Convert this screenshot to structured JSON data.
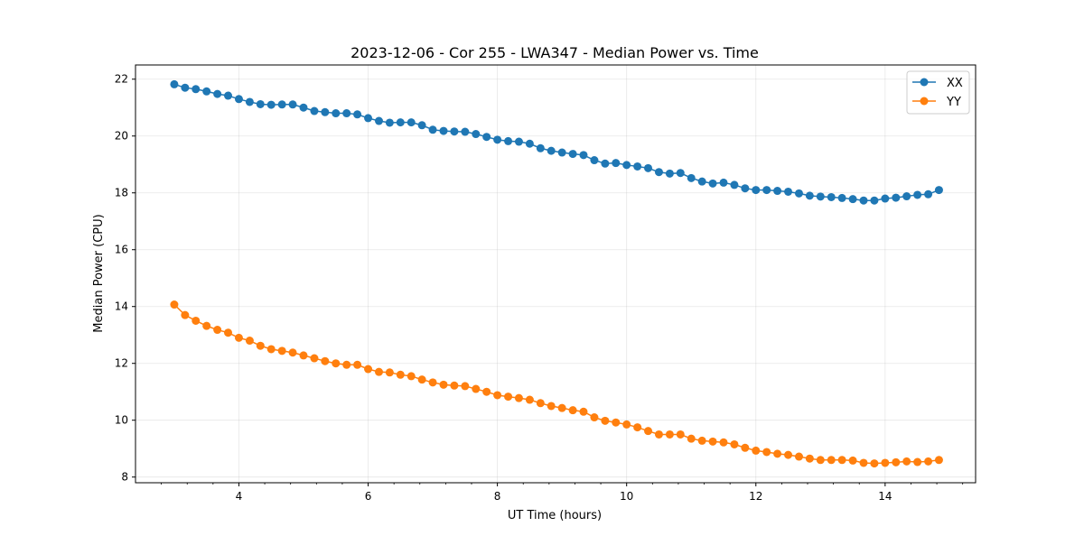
{
  "chart_data": {
    "type": "line",
    "title": "2023-12-06 - Cor 255 - LWA347 - Median Power vs. Time",
    "xlabel": "UT Time (hours)",
    "ylabel": "Median Power (CPU)",
    "xlim": [
      2.4,
      15.4
    ],
    "ylim": [
      7.8,
      22.5
    ],
    "xticks": [
      4,
      6,
      8,
      10,
      12,
      14
    ],
    "xtick_labels": [
      "4",
      "6",
      "8",
      "10",
      "12",
      "14"
    ],
    "yticks": [
      8,
      10,
      12,
      14,
      16,
      18,
      20,
      22
    ],
    "ytick_labels": [
      "8",
      "10",
      "12",
      "14",
      "16",
      "18",
      "20",
      "22"
    ],
    "grid": true,
    "legend_position": "top-right",
    "x": [
      3.0,
      3.167,
      3.333,
      3.5,
      3.667,
      3.833,
      4.0,
      4.167,
      4.333,
      4.5,
      4.667,
      4.833,
      5.0,
      5.167,
      5.333,
      5.5,
      5.667,
      5.833,
      6.0,
      6.167,
      6.333,
      6.5,
      6.667,
      6.833,
      7.0,
      7.167,
      7.333,
      7.5,
      7.667,
      7.833,
      8.0,
      8.167,
      8.333,
      8.5,
      8.667,
      8.833,
      9.0,
      9.167,
      9.333,
      9.5,
      9.667,
      9.833,
      10.0,
      10.167,
      10.333,
      10.5,
      10.667,
      10.833,
      11.0,
      11.167,
      11.333,
      11.5,
      11.667,
      11.833,
      12.0,
      12.167,
      12.333,
      12.5,
      12.667,
      12.833,
      13.0,
      13.167,
      13.333,
      13.5,
      13.667,
      13.833,
      14.0,
      14.167,
      14.333,
      14.5,
      14.667,
      14.833
    ],
    "series": [
      {
        "name": "XX",
        "color": "#1f77b4",
        "values": [
          21.82,
          21.7,
          21.65,
          21.57,
          21.48,
          21.42,
          21.3,
          21.2,
          21.12,
          21.1,
          21.11,
          21.11,
          21.0,
          20.88,
          20.84,
          20.8,
          20.8,
          20.76,
          20.63,
          20.53,
          20.47,
          20.48,
          20.48,
          20.38,
          20.22,
          20.18,
          20.16,
          20.15,
          20.07,
          19.97,
          19.87,
          19.82,
          19.8,
          19.73,
          19.57,
          19.48,
          19.42,
          19.37,
          19.33,
          19.15,
          19.03,
          19.05,
          18.98,
          18.93,
          18.87,
          18.73,
          18.68,
          18.7,
          18.52,
          18.4,
          18.33,
          18.36,
          18.28,
          18.16,
          18.1,
          18.1,
          18.07,
          18.04,
          17.98,
          17.9,
          17.87,
          17.85,
          17.82,
          17.78,
          17.73,
          17.73,
          17.8,
          17.83,
          17.88,
          17.93,
          17.95,
          18.1
        ]
      },
      {
        "name": "YY",
        "color": "#ff7f0e",
        "values": [
          14.07,
          13.7,
          13.5,
          13.32,
          13.18,
          13.08,
          12.9,
          12.8,
          12.62,
          12.5,
          12.44,
          12.38,
          12.28,
          12.18,
          12.08,
          12.0,
          11.95,
          11.95,
          11.8,
          11.7,
          11.68,
          11.6,
          11.55,
          11.43,
          11.33,
          11.25,
          11.22,
          11.2,
          11.1,
          11.0,
          10.88,
          10.83,
          10.78,
          10.72,
          10.6,
          10.5,
          10.43,
          10.35,
          10.3,
          10.1,
          9.98,
          9.92,
          9.85,
          9.75,
          9.62,
          9.5,
          9.5,
          9.5,
          9.35,
          9.28,
          9.25,
          9.22,
          9.15,
          9.03,
          8.93,
          8.88,
          8.82,
          8.78,
          8.72,
          8.65,
          8.6,
          8.6,
          8.6,
          8.58,
          8.5,
          8.48,
          8.5,
          8.52,
          8.55,
          8.53,
          8.55,
          8.6
        ]
      }
    ]
  }
}
